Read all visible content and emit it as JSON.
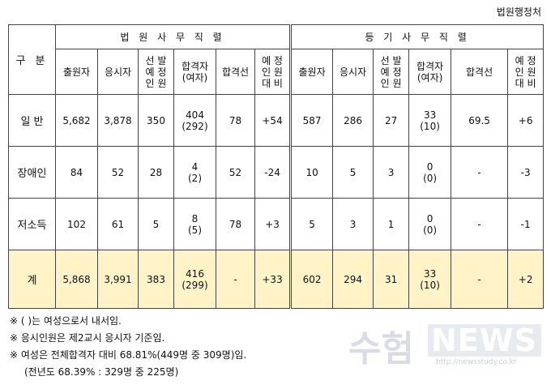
{
  "source": "법원행정처",
  "header": {
    "category": "구 분",
    "group1": "법 원 사 무 직 렬",
    "group2": "등 기 사 무 직 렬",
    "columns": [
      "출원자",
      "응시자",
      "선 발\n예 정\n인 원",
      "합격자\n(여자)",
      "합격선",
      "예 정\n인 원\n대 비"
    ]
  },
  "rows": [
    {
      "label": "일 반",
      "court": [
        "5,682",
        "3,878",
        "350",
        "404\n(292)",
        "78",
        "+54"
      ],
      "registry": [
        "587",
        "286",
        "27",
        "33\n(10)",
        "69.5",
        "+6"
      ]
    },
    {
      "label": "장애인",
      "court": [
        "84",
        "52",
        "28",
        "4\n(2)",
        "52",
        "-24"
      ],
      "registry": [
        "10",
        "5",
        "3",
        "0\n(0)",
        "-",
        "-3"
      ]
    },
    {
      "label": "저소득",
      "court": [
        "102",
        "61",
        "5",
        "8\n(5)",
        "78",
        "+3"
      ],
      "registry": [
        "5",
        "3",
        "1",
        "0\n(0)",
        "-",
        "-1"
      ]
    }
  ],
  "total": {
    "label": "계",
    "court": [
      "5,868",
      "3,991",
      "383",
      "416\n(299)",
      "-",
      "+33"
    ],
    "registry": [
      "602",
      "294",
      "31",
      "33\n(10)",
      "-",
      "+2"
    ]
  },
  "notes": [
    "※ (    )는 여성으로서 내서임.",
    "※ 응시인원은 제2교시 응시자 기준임.",
    "※ 여성은 전체합격자 대비 68.81%(449명 중 309명)임.",
    "(전년도 68.39% : 329명 중 225명)"
  ],
  "watermark": {
    "korean": "수험",
    "english": "NEWS",
    "url": "http://newsstudy.co.kr"
  },
  "colors": {
    "total_row_bg": "#fff3c7",
    "border": "#444444",
    "watermark": "#d9dde3"
  }
}
